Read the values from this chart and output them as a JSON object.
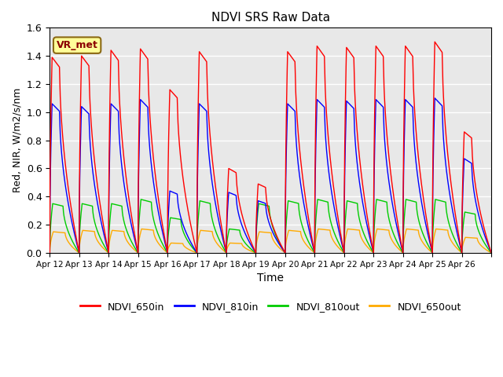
{
  "title": "NDVI SRS Raw Data",
  "xlabel": "Time",
  "ylabel": "Red, NIR, W/m2/s/nm",
  "ylim": [
    0.0,
    1.6
  ],
  "yticks": [
    0.0,
    0.2,
    0.4,
    0.6,
    0.8,
    1.0,
    1.2,
    1.4,
    1.6
  ],
  "n_days": 15,
  "xtick_positions": [
    0,
    1,
    2,
    3,
    4,
    5,
    6,
    7,
    8,
    9,
    10,
    11,
    12,
    13,
    14,
    15
  ],
  "xtick_labels": [
    "Apr 12",
    "Apr 13",
    "Apr 14",
    "Apr 15",
    "Apr 16",
    "Apr 17",
    "Apr 18",
    "Apr 19",
    "Apr 20",
    "Apr 21",
    "Apr 22",
    "Apr 23",
    "Apr 24",
    "Apr 25",
    "Apr 26",
    ""
  ],
  "background_color": "#e8e8e8",
  "annotation_text": "VR_met",
  "annotation_bg": "#ffff99",
  "annotation_border": "#8B6914",
  "colors": {
    "NDVI_650in": "#ff0000",
    "NDVI_810in": "#0000ff",
    "NDVI_810out": "#00cc00",
    "NDVI_650out": "#ffaa00"
  },
  "legend_labels": [
    "NDVI_650in",
    "NDVI_810in",
    "NDVI_810out",
    "NDVI_650out"
  ],
  "peaks_650in": [
    1.39,
    1.4,
    1.44,
    1.45,
    1.16,
    1.43,
    0.6,
    0.49,
    1.43,
    1.47,
    1.46,
    1.47,
    1.47,
    1.5,
    0.86
  ],
  "peaks_810in": [
    1.06,
    1.04,
    1.06,
    1.09,
    0.44,
    1.06,
    0.43,
    0.37,
    1.06,
    1.09,
    1.08,
    1.09,
    1.09,
    1.1,
    0.67
  ],
  "peaks_810out": [
    0.35,
    0.35,
    0.35,
    0.38,
    0.25,
    0.37,
    0.17,
    0.35,
    0.37,
    0.38,
    0.37,
    0.38,
    0.38,
    0.38,
    0.29
  ],
  "peaks_650out": [
    0.15,
    0.16,
    0.16,
    0.17,
    0.07,
    0.16,
    0.07,
    0.15,
    0.16,
    0.17,
    0.17,
    0.17,
    0.17,
    0.17,
    0.11
  ]
}
